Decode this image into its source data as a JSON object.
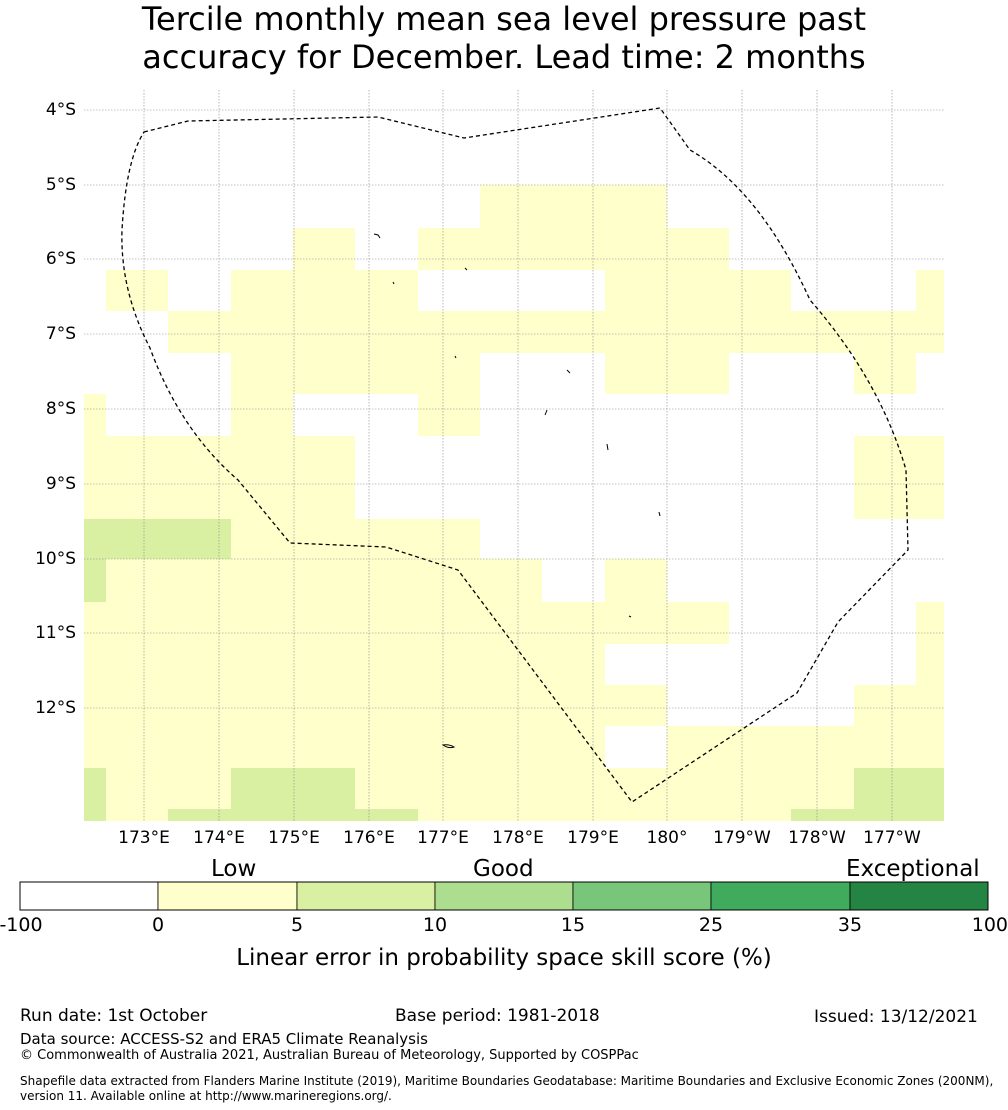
{
  "title": {
    "line1": "Tercile monthly mean sea level pressure past",
    "line2": "accuracy for December. Lead time: 2 months"
  },
  "map": {
    "lat_labels": [
      "4°S",
      "5°S",
      "6°S",
      "7°S",
      "8°S",
      "9°S",
      "10°S",
      "11°S",
      "12°S"
    ],
    "lon_labels": [
      "173°E",
      "174°E",
      "175°E",
      "176°E",
      "177°E",
      "178°E",
      "179°E",
      "180°",
      "179°W",
      "178°W",
      "177°W"
    ],
    "colors": {
      "white": "#ffffff",
      "low": "#ffffcc",
      "good": "#d9f0a3"
    }
  },
  "colorbar": {
    "category_labels": [
      "Low",
      "Good",
      "Exceptional"
    ],
    "ticks": [
      "-100",
      "0",
      "5",
      "10",
      "15",
      "25",
      "35",
      "100"
    ],
    "colors": [
      "#ffffff",
      "#ffffcc",
      "#d9f0a3",
      "#addd8e",
      "#78c679",
      "#41ab5d",
      "#238443"
    ],
    "label": "Linear error in probability space skill score (%)"
  },
  "footer": {
    "run_date": "Run date: 1st October",
    "base_period": "Base period: 1981-2018",
    "issued": "Issued: 13/12/2021",
    "data_source": "Data source: ACCESS-S2 and ERA5 Climate Reanalysis",
    "copyright": "© Commonwealth of Australia 2021, Australian Bureau of Meteorology, Supported by COSPPac",
    "shapefile_line1": "Shapefile data extracted from Flanders Marine Institute (2019), Maritime Boundaries Geodatabase: Maritime Boundaries and Exclusive Economic Zones (200NM),",
    "shapefile_line2": "version 11. Available online at http://www.marineregions.org/."
  }
}
